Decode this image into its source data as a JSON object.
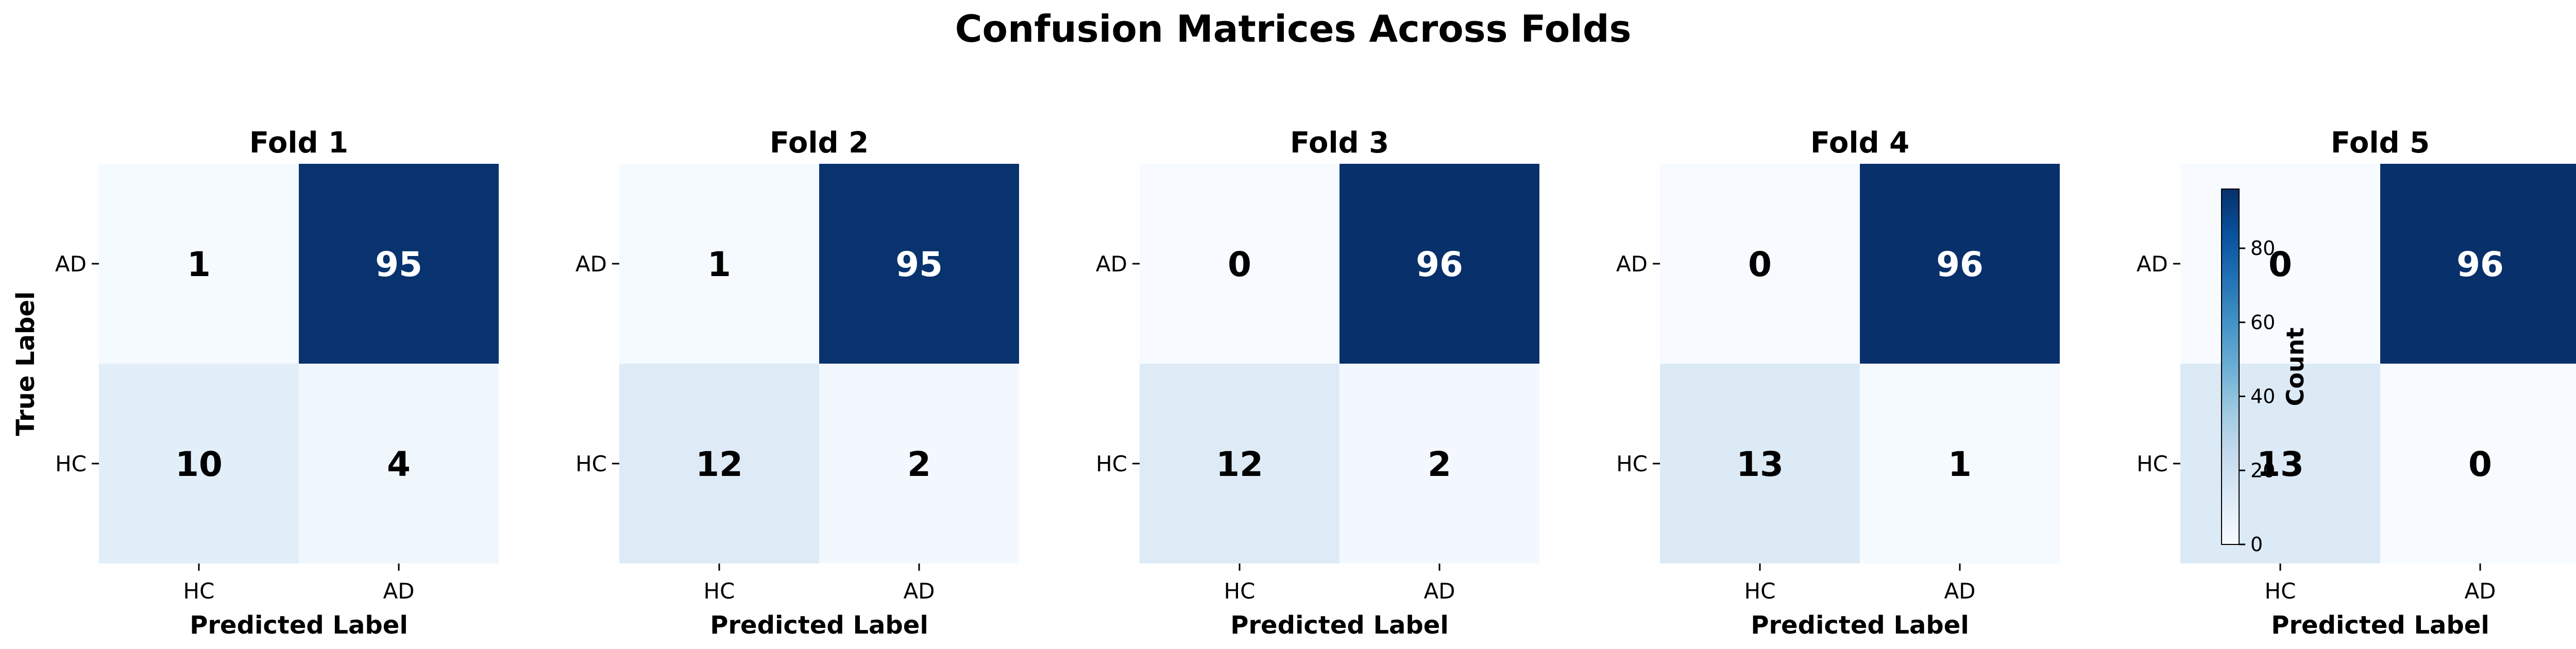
{
  "figure": {
    "title": "Confusion Matrices Across Folds"
  },
  "chart_data": [
    {
      "type": "heatmap",
      "title": "Fold 1",
      "xlabel": "Predicted Label",
      "ylabel": "True Label",
      "x_categories": [
        "HC",
        "AD"
      ],
      "y_categories": [
        "AD",
        "HC"
      ],
      "matrix": [
        [
          1,
          95
        ],
        [
          10,
          4
        ]
      ]
    },
    {
      "type": "heatmap",
      "title": "Fold 2",
      "xlabel": "Predicted Label",
      "ylabel": "",
      "x_categories": [
        "HC",
        "AD"
      ],
      "y_categories": [
        "AD",
        "HC"
      ],
      "matrix": [
        [
          1,
          95
        ],
        [
          12,
          2
        ]
      ]
    },
    {
      "type": "heatmap",
      "title": "Fold 3",
      "xlabel": "Predicted Label",
      "ylabel": "",
      "x_categories": [
        "HC",
        "AD"
      ],
      "y_categories": [
        "AD",
        "HC"
      ],
      "matrix": [
        [
          0,
          96
        ],
        [
          12,
          2
        ]
      ]
    },
    {
      "type": "heatmap",
      "title": "Fold 4",
      "xlabel": "Predicted Label",
      "ylabel": "",
      "x_categories": [
        "HC",
        "AD"
      ],
      "y_categories": [
        "AD",
        "HC"
      ],
      "matrix": [
        [
          0,
          96
        ],
        [
          13,
          1
        ]
      ]
    },
    {
      "type": "heatmap",
      "title": "Fold 5",
      "xlabel": "Predicted Label",
      "ylabel": "",
      "x_categories": [
        "HC",
        "AD"
      ],
      "y_categories": [
        "AD",
        "HC"
      ],
      "matrix": [
        [
          0,
          96
        ],
        [
          13,
          0
        ]
      ]
    }
  ],
  "colorbar": {
    "label": "Count",
    "range": [
      0,
      96
    ],
    "ticks": [
      0,
      20,
      40,
      60,
      80
    ],
    "colormap": "Blues",
    "colors": [
      "#f7fbff",
      "#deebf7",
      "#c6dbef",
      "#9ecae1",
      "#6baed6",
      "#4292c6",
      "#2171b5",
      "#08519c",
      "#08306b"
    ]
  }
}
